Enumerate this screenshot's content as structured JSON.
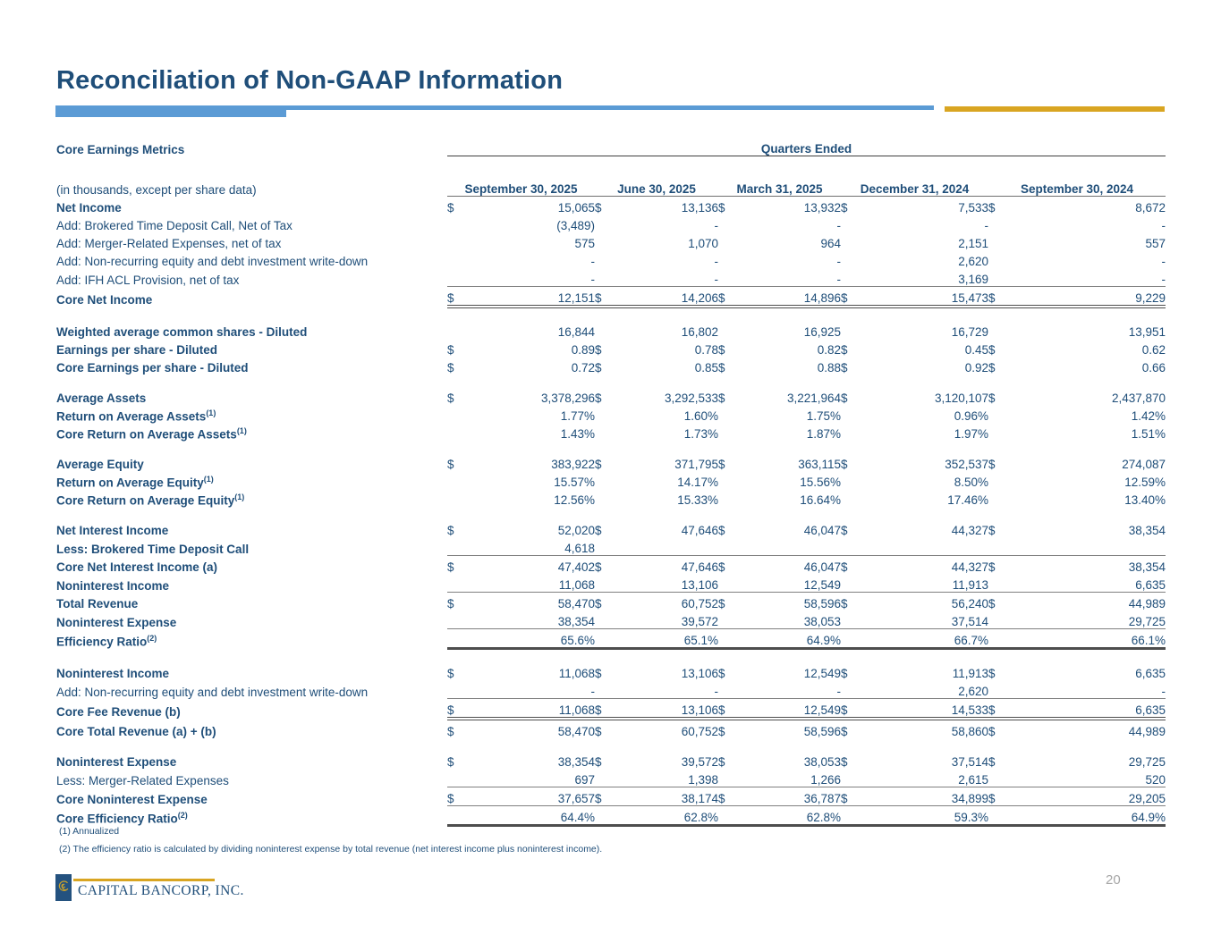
{
  "page": {
    "title": "Reconciliation of Non-GAAP Information",
    "section_label": "Core Earnings Metrics",
    "units_note": "(in thousands, except per share data)",
    "quarters_ended_label": "Quarters Ended",
    "footnotes": [
      "(1) Annualized",
      "(2) The efficiency ratio is calculated by dividing noninterest expense by total revenue (net interest income plus noninterest income)."
    ],
    "logo_text": "CAPITAL BANCORP, INC.",
    "page_number": "20",
    "colors": {
      "navy_text": "#1F4E79",
      "accent_bar_blue": "#5B9BD5",
      "accent_gold": "#D9A521",
      "rule_gray": "#808080",
      "page_number_gray": "#A6A6A6"
    }
  },
  "table": {
    "columns": [
      "September 30, 2025",
      "June 30, 2025",
      "March 31, 2025",
      "December 31, 2024",
      "September 30, 2024"
    ],
    "rows": [
      {
        "label": "Net Income",
        "bold": true,
        "dollar": true,
        "values": [
          "15,065",
          "13,136",
          "13,932",
          "7,533",
          "8,672"
        ]
      },
      {
        "label": "Add: Brokered Time Deposit Call, Net of Tax",
        "values": [
          "(3,489)",
          "-",
          "-",
          "-",
          "-"
        ]
      },
      {
        "label": "Add: Merger-Related Expenses, net of tax",
        "values": [
          "575",
          "1,070",
          "964",
          "2,151",
          "557"
        ]
      },
      {
        "label": "Add: Non-recurring equity and debt investment write-down",
        "values": [
          "-",
          "-",
          "-",
          "2,620",
          "-"
        ]
      },
      {
        "label": "Add: IFH ACL Provision, net of tax",
        "values": [
          "-",
          "-",
          "-",
          "3,169",
          "-"
        ]
      },
      {
        "label": "Core Net Income",
        "bold": true,
        "dollar": true,
        "rule_top": true,
        "rule_bottom": "double",
        "values": [
          "12,151",
          "14,206",
          "14,896",
          "15,473",
          "9,229"
        ]
      },
      {
        "label": "Weighted average common shares - Diluted",
        "bold": true,
        "space": true,
        "values": [
          "16,844",
          "16,802",
          "16,925",
          "16,729",
          "13,951"
        ]
      },
      {
        "label": "Earnings per share - Diluted",
        "bold": true,
        "dollar": true,
        "values": [
          "0.89",
          "0.78",
          "0.82",
          "0.45",
          "0.62"
        ]
      },
      {
        "label": "Core Earnings per share - Diluted",
        "bold": true,
        "dollar": true,
        "values": [
          "0.72",
          "0.85",
          "0.88",
          "0.92",
          "0.66"
        ]
      },
      {
        "label": "Average Assets",
        "bold": true,
        "dollar": true,
        "space": true,
        "values": [
          "3,378,296",
          "3,292,533",
          "3,221,964",
          "3,120,107",
          "2,437,870"
        ]
      },
      {
        "label": "Return on Average Assets",
        "sup": "(1)",
        "bold": true,
        "values": [
          "1.77%",
          "1.60%",
          "1.75%",
          "0.96%",
          "1.42%"
        ]
      },
      {
        "label": "Core Return on Average Assets",
        "sup": "(1)",
        "bold": true,
        "values": [
          "1.43%",
          "1.73%",
          "1.87%",
          "1.97%",
          "1.51%"
        ]
      },
      {
        "label": "Average Equity",
        "bold": true,
        "dollar": true,
        "space": true,
        "values": [
          "383,922",
          "371,795",
          "363,115",
          "352,537",
          "274,087"
        ]
      },
      {
        "label": "Return on Average Equity",
        "sup": "(1)",
        "bold": true,
        "values": [
          "15.57%",
          "14.17%",
          "15.56%",
          "8.50%",
          "12.59%"
        ]
      },
      {
        "label": "Core Return on Average Equity",
        "sup": "(1)",
        "bold": true,
        "values": [
          "12.56%",
          "15.33%",
          "16.64%",
          "17.46%",
          "13.40%"
        ]
      },
      {
        "label": "Net Interest Income",
        "bold": true,
        "dollar": true,
        "space": true,
        "values": [
          "52,020",
          "47,646",
          "46,047",
          "44,327",
          "38,354"
        ]
      },
      {
        "label": "Less: Brokered Time Deposit Call",
        "bold": true,
        "values": [
          "4,618",
          "",
          "",
          "",
          ""
        ]
      },
      {
        "label": "Core Net Interest Income (a)",
        "bold": true,
        "dollar": true,
        "rule_top": true,
        "values": [
          "47,402",
          "47,646",
          "46,047",
          "44,327",
          "38,354"
        ]
      },
      {
        "label": "Noninterest Income",
        "bold": true,
        "values": [
          "11,068",
          "13,106",
          "12,549",
          "11,913",
          "6,635"
        ]
      },
      {
        "label": "Total Revenue",
        "bold": true,
        "dollar": true,
        "rule_top": true,
        "values": [
          "58,470",
          "60,752",
          "58,596",
          "56,240",
          "44,989"
        ]
      },
      {
        "label": "Noninterest Expense",
        "bold": true,
        "values": [
          "38,354",
          "39,572",
          "38,053",
          "37,514",
          "29,725"
        ]
      },
      {
        "label": "Efficiency Ratio",
        "sup": "(2)",
        "bold": true,
        "rule_top": true,
        "rule_bottom": "thick",
        "values": [
          "65.6%",
          "65.1%",
          "64.9%",
          "66.7%",
          "66.1%"
        ]
      },
      {
        "label": "Noninterest Income",
        "bold": true,
        "dollar": true,
        "space": true,
        "values": [
          "11,068",
          "13,106",
          "12,549",
          "11,913",
          "6,635"
        ]
      },
      {
        "label": "Add: Non-recurring equity and debt investment write-down",
        "values": [
          "-",
          "-",
          "-",
          "2,620",
          "-"
        ]
      },
      {
        "label": "Core Fee Revenue (b)",
        "bold": true,
        "dollar": true,
        "rule_top": true,
        "rule_bottom": "double",
        "values": [
          "11,068",
          "13,106",
          "12,549",
          "14,533",
          "6,635"
        ]
      },
      {
        "label": "Core Total Revenue (a) + (b)",
        "bold": true,
        "dollar": true,
        "values": [
          "58,470",
          "60,752",
          "58,596",
          "58,860",
          "44,989"
        ]
      },
      {
        "label": "Noninterest Expense",
        "bold": true,
        "dollar": true,
        "space": true,
        "values": [
          "38,354",
          "39,572",
          "38,053",
          "37,514",
          "29,725"
        ]
      },
      {
        "label": "Less: Merger-Related Expenses",
        "values": [
          "697",
          "1,398",
          "1,266",
          "2,615",
          "520"
        ]
      },
      {
        "label": "Core Noninterest Expense",
        "bold": true,
        "dollar": true,
        "rule_top": true,
        "rule_bottom": "single",
        "values": [
          "37,657",
          "38,174",
          "36,787",
          "34,899",
          "29,205"
        ]
      },
      {
        "label": "Core Efficiency Ratio",
        "sup": "(2)",
        "bold": true,
        "rule_bottom": "thick",
        "values": [
          "64.4%",
          "62.8%",
          "62.8%",
          "59.3%",
          "64.9%"
        ]
      }
    ]
  }
}
